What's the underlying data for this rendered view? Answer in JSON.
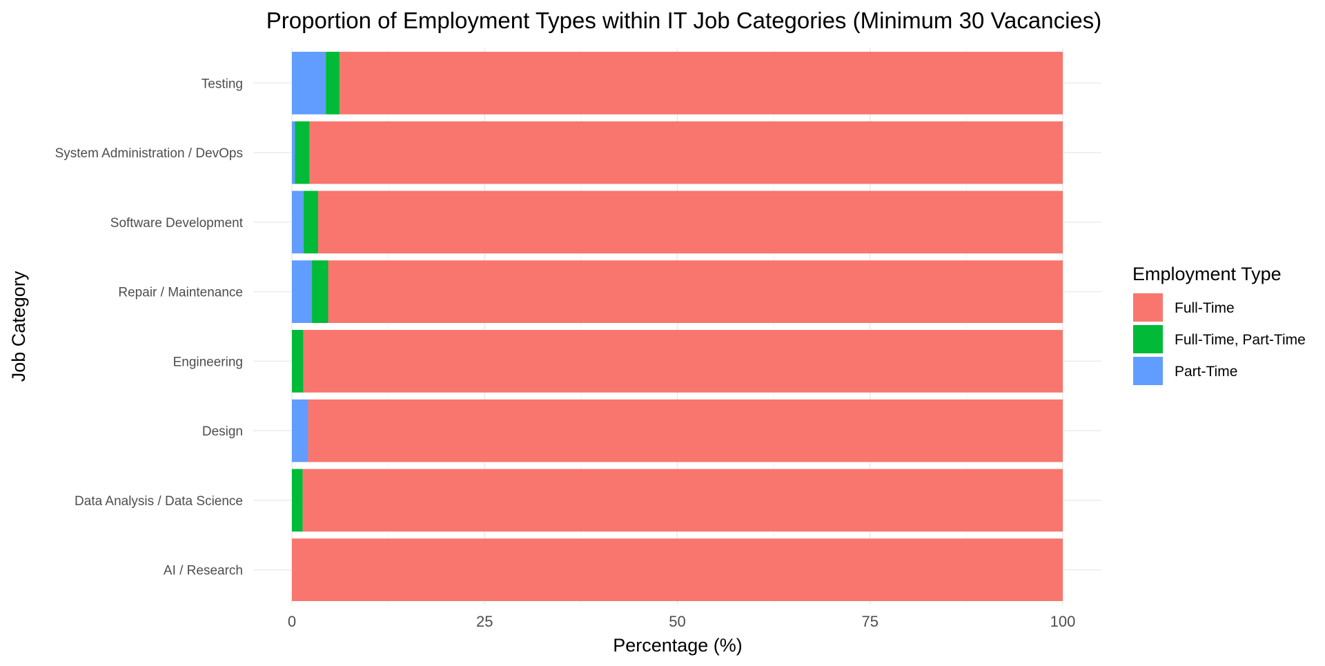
{
  "chart_data": {
    "type": "bar",
    "orientation": "horizontal",
    "stacked": true,
    "title": "Proportion of Employment Types within IT Job Categories (Minimum 30 Vacancies)",
    "xlabel": "Percentage (%)",
    "ylabel": "Job Category",
    "xlim": [
      0,
      100
    ],
    "x_ticks": [
      "0",
      "25",
      "50",
      "75",
      "100"
    ],
    "categories": [
      "AI / Research",
      "Data Analysis / Data Science",
      "Design",
      "Engineering",
      "Repair / Maintenance",
      "Software Development",
      "System Administration / DevOps",
      "Testing"
    ],
    "series": [
      {
        "name": "Part-Time",
        "color": "#619CFF",
        "values": [
          0,
          0,
          2.1,
          0,
          2.6,
          1.5,
          0.4,
          4.4
        ]
      },
      {
        "name": "Full-Time, Part-Time",
        "color": "#00BA38",
        "values": [
          0,
          1.4,
          0,
          1.5,
          2.1,
          1.9,
          1.9,
          1.8
        ]
      },
      {
        "name": "Full-Time",
        "color": "#F8766D",
        "values": [
          100,
          98.6,
          97.9,
          98.5,
          95.3,
          96.6,
          97.7,
          93.8
        ]
      }
    ],
    "legend": {
      "title": "Employment Type",
      "position": "right",
      "items": [
        "Full-Time",
        "Full-Time, Part-Time",
        "Part-Time"
      ]
    },
    "grid": true
  }
}
